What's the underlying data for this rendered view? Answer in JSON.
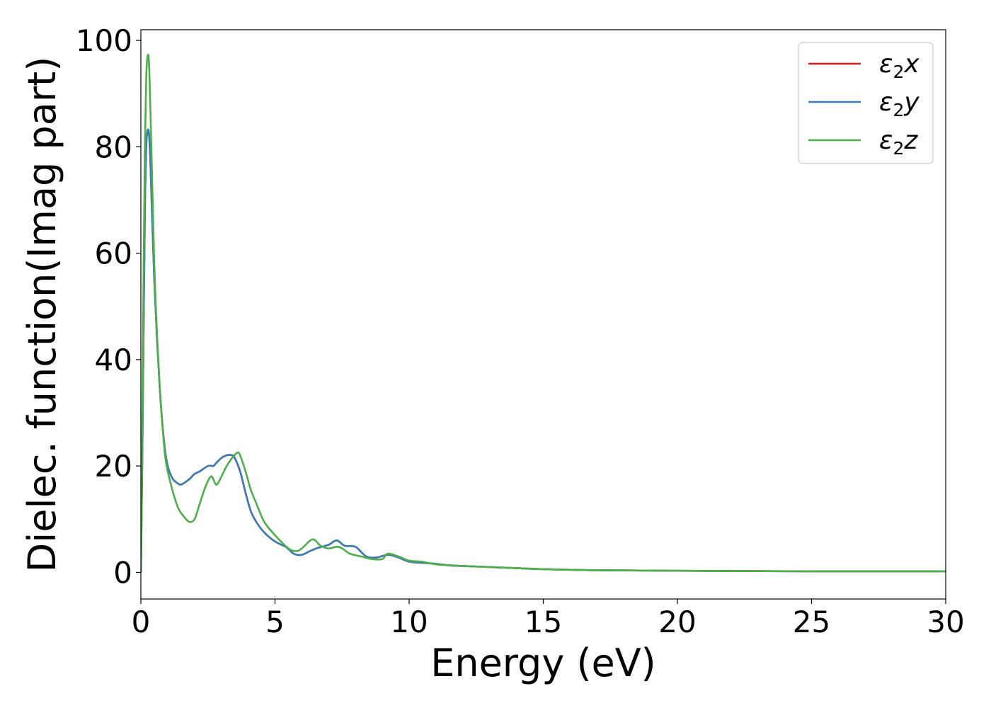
{
  "chart_data": {
    "type": "line",
    "xlabel": "Energy (eV)",
    "ylabel": "Dielec. function(Imag part)",
    "xlim": [
      0,
      30
    ],
    "ylim": [
      -5,
      102
    ],
    "xticks": [
      0,
      5,
      10,
      15,
      20,
      25,
      30
    ],
    "yticks": [
      0,
      20,
      40,
      60,
      80,
      100
    ],
    "grid": false,
    "legend_position": "top-right",
    "series": [
      {
        "name": "ε₂x",
        "legend_main": "ε",
        "legend_sub": "2",
        "legend_tail": "x",
        "color": "#e41a1c",
        "x": [
          0,
          0.05,
          0.1,
          0.15,
          0.2,
          0.25,
          0.3,
          0.35,
          0.4,
          0.5,
          0.6,
          0.7,
          0.8,
          0.9,
          1.0,
          1.1,
          1.2,
          1.3,
          1.5,
          1.8,
          2.0,
          2.2,
          2.5,
          2.7,
          2.8,
          3.0,
          3.2,
          3.4,
          3.5,
          3.7,
          3.9,
          4.1,
          4.3,
          4.6,
          5.0,
          5.4,
          5.7,
          6.0,
          6.3,
          6.6,
          7.0,
          7.3,
          7.6,
          8.0,
          8.4,
          8.8,
          9.2,
          9.6,
          10.0,
          10.5,
          11.0,
          11.5,
          12.0,
          13.0,
          14.0,
          15.0,
          17.0,
          20.0,
          25.0,
          30.0
        ],
        "values": [
          0,
          20,
          45,
          68,
          80,
          83,
          82.5,
          78,
          70,
          55,
          44,
          35,
          28,
          23,
          20,
          18.5,
          17.5,
          17,
          16.5,
          17.5,
          18.5,
          19,
          20,
          20,
          20.5,
          21.5,
          22,
          22,
          21.5,
          19,
          15,
          11.5,
          9.5,
          7.5,
          5.8,
          4.8,
          3.5,
          3.3,
          4.0,
          4.6,
          5.2,
          6.0,
          5.0,
          4.8,
          3.0,
          2.8,
          3.3,
          2.8,
          2.0,
          1.8,
          1.6,
          1.3,
          1.2,
          1.0,
          0.8,
          0.6,
          0.4,
          0.3,
          0.2,
          0.2
        ]
      },
      {
        "name": "ε₂y",
        "legend_main": "ε",
        "legend_sub": "2",
        "legend_tail": "y",
        "color": "#377eb8",
        "x": [
          0,
          0.05,
          0.1,
          0.15,
          0.2,
          0.25,
          0.3,
          0.35,
          0.4,
          0.5,
          0.6,
          0.7,
          0.8,
          0.9,
          1.0,
          1.1,
          1.2,
          1.3,
          1.5,
          1.8,
          2.0,
          2.2,
          2.5,
          2.7,
          2.8,
          3.0,
          3.2,
          3.4,
          3.5,
          3.7,
          3.9,
          4.1,
          4.3,
          4.6,
          5.0,
          5.4,
          5.7,
          6.0,
          6.3,
          6.6,
          7.0,
          7.3,
          7.6,
          8.0,
          8.4,
          8.8,
          9.2,
          9.6,
          10.0,
          10.5,
          11.0,
          11.5,
          12.0,
          13.0,
          14.0,
          15.0,
          17.0,
          20.0,
          25.0,
          30.0
        ],
        "values": [
          0,
          20,
          45,
          68,
          80,
          83,
          82.5,
          78,
          70,
          55,
          44,
          35,
          28,
          23,
          20,
          18.5,
          17.5,
          17,
          16.5,
          17.5,
          18.5,
          19,
          20,
          20,
          20.5,
          21.5,
          22,
          22,
          21.5,
          19,
          15,
          11.5,
          9.5,
          7.5,
          5.8,
          4.8,
          3.5,
          3.3,
          4.0,
          4.6,
          5.2,
          6.0,
          5.0,
          4.8,
          3.0,
          2.8,
          3.3,
          2.8,
          2.0,
          1.8,
          1.6,
          1.3,
          1.2,
          1.0,
          0.8,
          0.6,
          0.4,
          0.3,
          0.2,
          0.2
        ]
      },
      {
        "name": "ε₂z",
        "legend_main": "ε",
        "legend_sub": "2",
        "legend_tail": "z",
        "color": "#4daf4a",
        "x": [
          0,
          0.05,
          0.1,
          0.15,
          0.2,
          0.25,
          0.3,
          0.35,
          0.4,
          0.5,
          0.6,
          0.7,
          0.8,
          0.9,
          1.0,
          1.2,
          1.4,
          1.6,
          1.8,
          2.0,
          2.2,
          2.4,
          2.6,
          2.7,
          2.8,
          2.9,
          3.0,
          3.2,
          3.4,
          3.6,
          3.7,
          3.9,
          4.1,
          4.3,
          4.6,
          5.0,
          5.5,
          5.8,
          6.0,
          6.4,
          6.7,
          7.0,
          7.3,
          7.5,
          7.8,
          8.2,
          8.6,
          9.0,
          9.2,
          9.6,
          10.0,
          10.5,
          11.0,
          12.0,
          13.0,
          14.0,
          15.0,
          17.0,
          20.0,
          25.0,
          30.0
        ],
        "values": [
          0,
          25,
          55,
          80,
          93,
          97,
          96,
          88,
          78,
          58,
          45,
          35,
          28,
          22,
          19,
          15,
          12,
          10.5,
          9.5,
          10,
          13,
          16,
          18,
          17.5,
          16.5,
          17,
          18,
          20,
          21.5,
          22.5,
          22,
          19,
          15.5,
          13,
          9.5,
          7,
          4.5,
          4.0,
          4.5,
          6.2,
          5.0,
          4.5,
          4.8,
          4.5,
          3.5,
          3.0,
          2.5,
          2.5,
          3.5,
          3.0,
          2.2,
          2.0,
          1.5,
          1.2,
          1.0,
          0.8,
          0.6,
          0.4,
          0.3,
          0.2,
          0.2
        ]
      }
    ]
  }
}
